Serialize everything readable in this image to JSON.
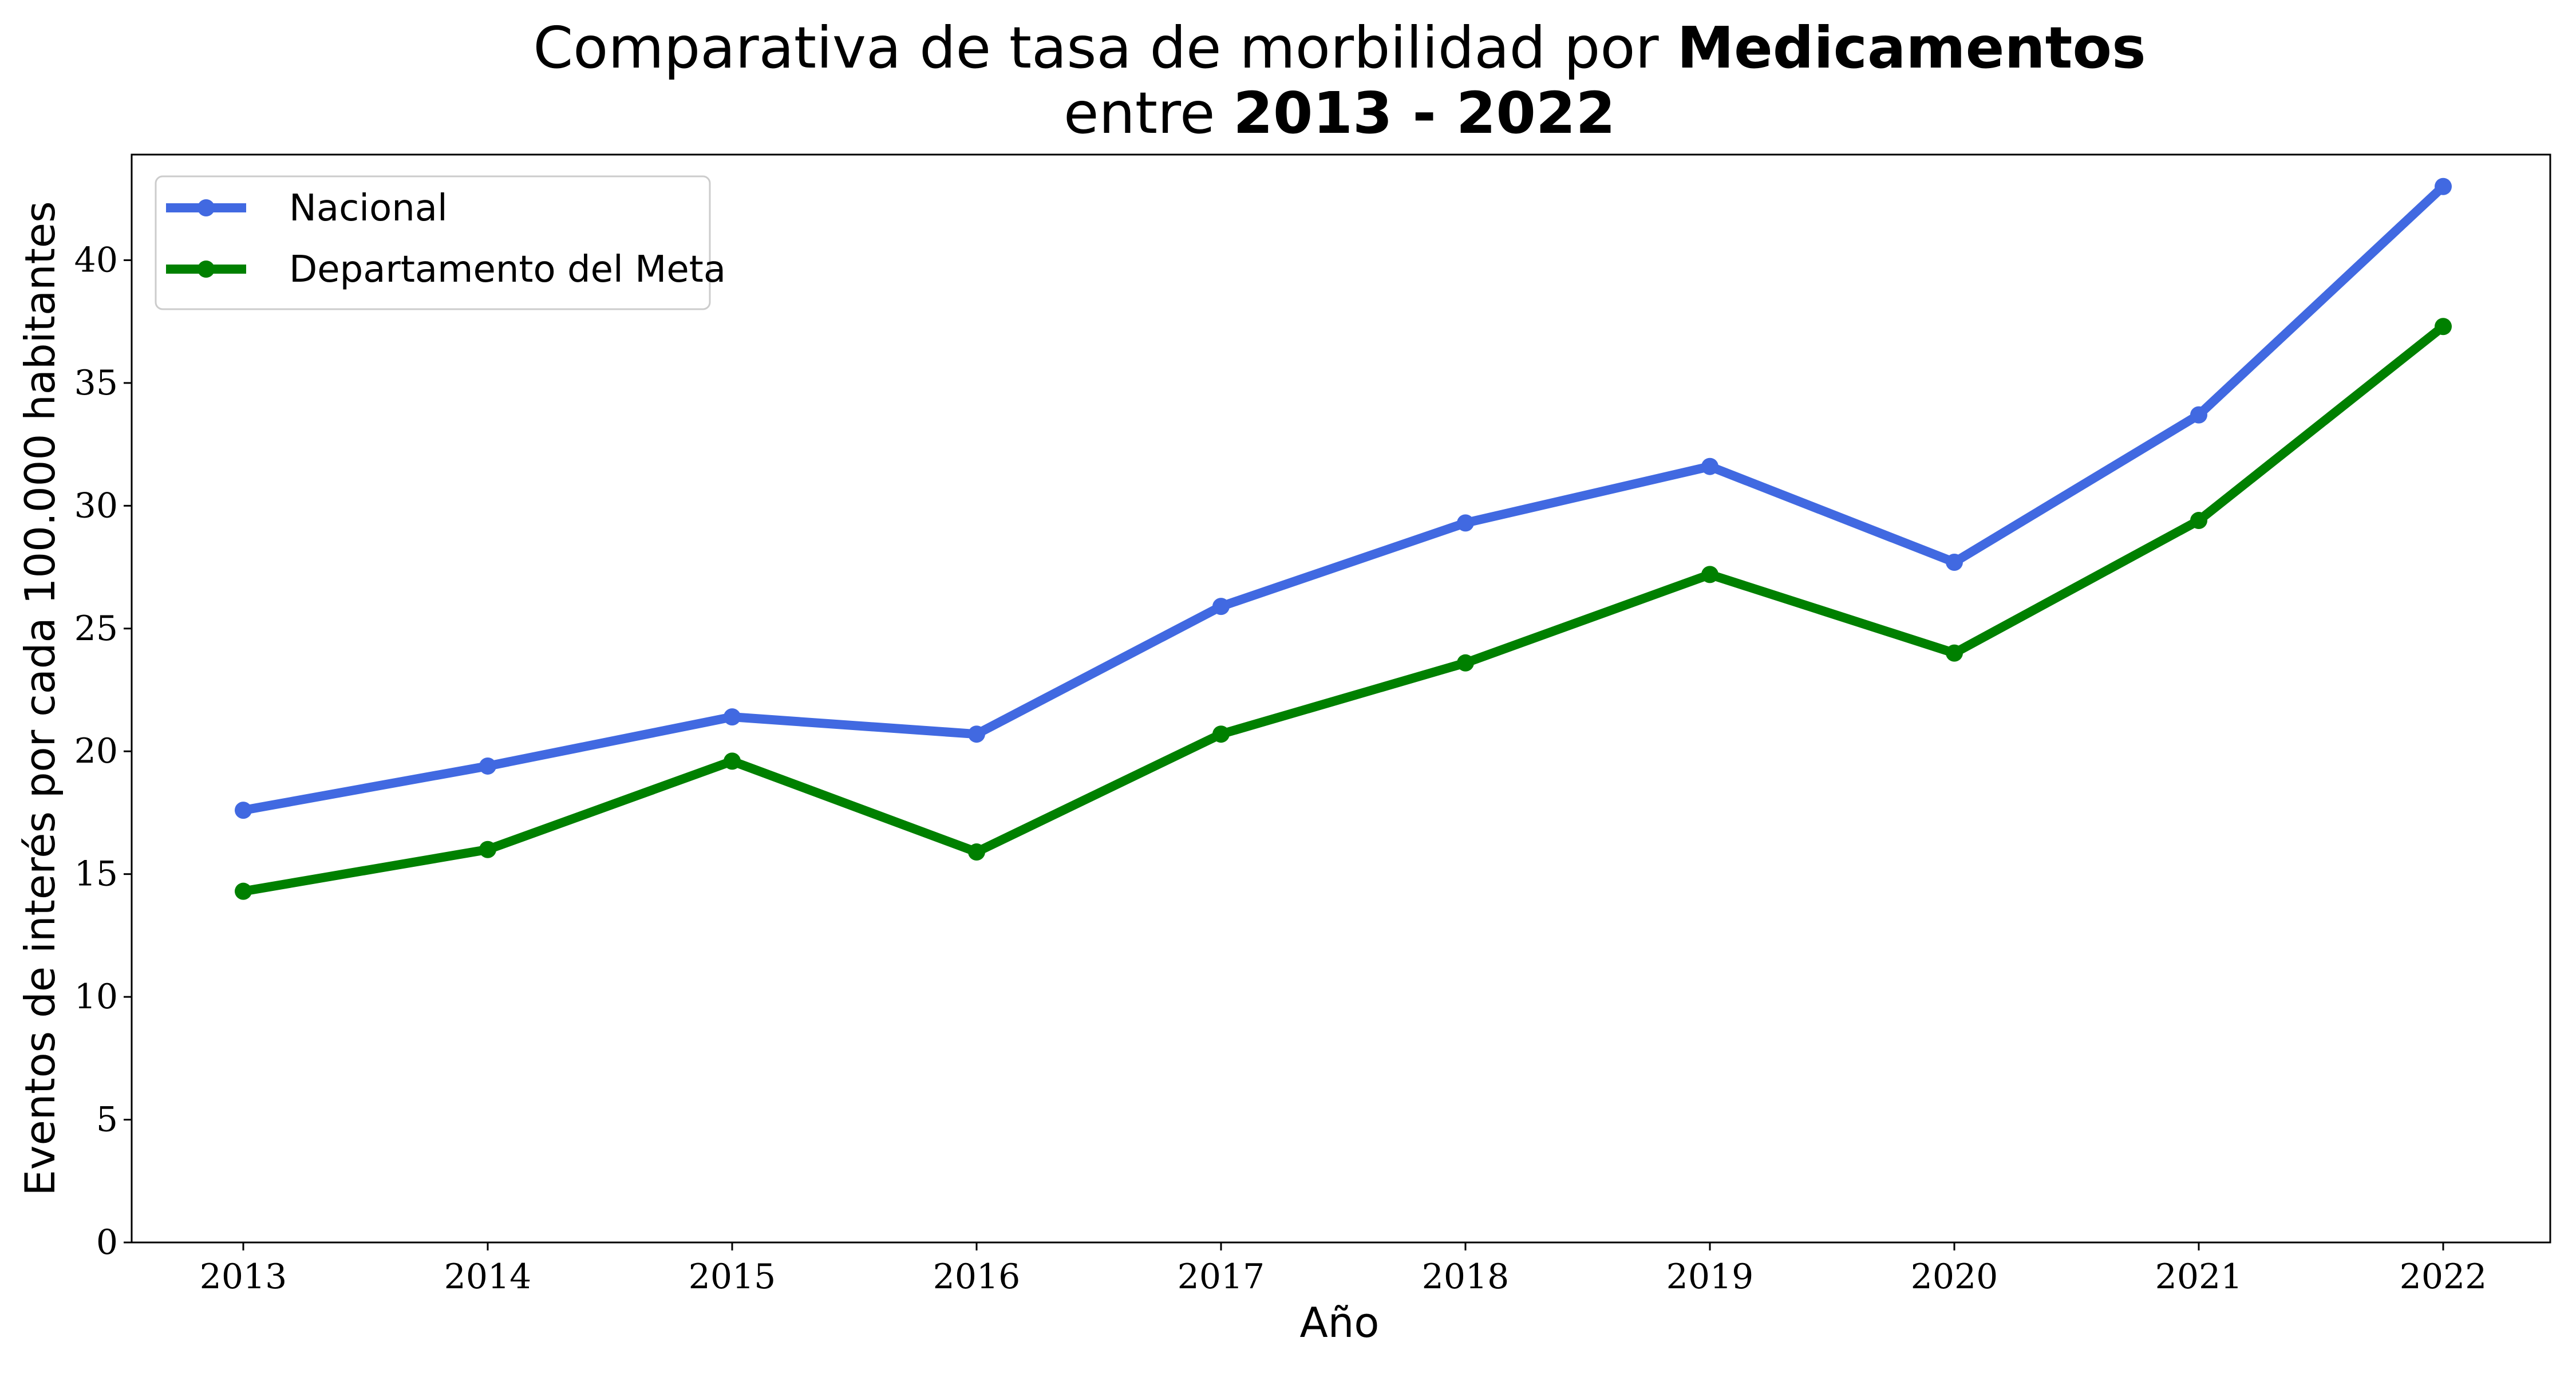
{
  "chart_data": {
    "type": "line",
    "title": {
      "line1_prefix": "Comparativa de tasa de morbilidad por ",
      "line1_bold": "Medicamentos",
      "line2_prefix": "entre ",
      "line2_bold": "2013 - 2022"
    },
    "xlabel": "Año",
    "ylabel": "Eventos de interés por cada 100.000 habitantes",
    "x": [
      2013,
      2014,
      2015,
      2016,
      2017,
      2018,
      2019,
      2020,
      2021,
      2022
    ],
    "xtick_labels": [
      "2013",
      "2014",
      "2015",
      "2016",
      "2017",
      "2018",
      "2019",
      "2020",
      "2021",
      "2022"
    ],
    "ylim": [
      0,
      44.3
    ],
    "yticks": [
      0,
      5,
      10,
      15,
      20,
      25,
      30,
      35,
      40
    ],
    "grid": false,
    "legend_position": "top-left",
    "series": [
      {
        "name": "Nacional",
        "color": "#4169E1",
        "values": [
          17.6,
          19.4,
          21.4,
          20.7,
          25.9,
          29.3,
          31.6,
          27.7,
          33.7,
          43.0
        ]
      },
      {
        "name": "Departamento del Meta",
        "color": "#008000",
        "values": [
          14.3,
          16.0,
          19.6,
          15.9,
          20.7,
          23.6,
          27.2,
          24.0,
          29.4,
          37.3
        ]
      }
    ]
  }
}
